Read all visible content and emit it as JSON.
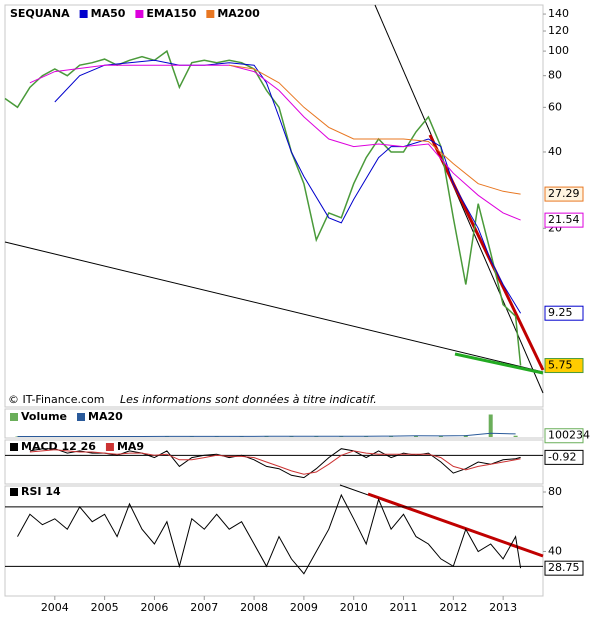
{
  "source": "© IT-Finance.com",
  "disclaimer": "Les informations sont données à titre indicatif.",
  "chart_data": [
    {
      "type": "line",
      "log_scale": true,
      "ylim": [
        4.4,
        152
      ],
      "yticks": [
        140,
        120,
        100,
        80,
        60,
        40,
        20
      ],
      "series": [
        {
          "name": "SEQUANA",
          "color": "#4a9a3a",
          "label_last": true,
          "label_fill": "#ffcc00",
          "label_color": "#000000",
          "x": [
            2003,
            2003.25,
            2003.5,
            2003.75,
            2004,
            2004.25,
            2004.5,
            2004.75,
            2005,
            2005.25,
            2005.5,
            2005.75,
            2006,
            2006.25,
            2006.5,
            2006.75,
            2007,
            2007.25,
            2007.5,
            2007.75,
            2008,
            2008.25,
            2008.5,
            2008.75,
            2009,
            2009.25,
            2009.5,
            2009.75,
            2010,
            2010.25,
            2010.5,
            2010.75,
            2011,
            2011.25,
            2011.5,
            2011.75,
            2012,
            2012.25,
            2012.5,
            2012.75,
            2013,
            2013.25,
            2013.35
          ],
          "values": [
            65,
            60,
            72,
            80,
            85,
            80,
            88,
            90,
            93,
            88,
            92,
            95,
            92,
            100,
            72,
            90,
            92,
            90,
            92,
            90,
            85,
            70,
            60,
            40,
            30,
            18,
            23,
            22,
            30,
            38,
            45,
            40,
            40,
            48,
            55,
            42,
            22,
            12,
            25,
            16,
            10,
            9,
            5.75
          ]
        },
        {
          "name": "MA50",
          "color": "#0000cc",
          "label_last": true,
          "label_fill": "#ffffff",
          "label_color": "#0000cc",
          "x": [
            2004,
            2004.5,
            2005,
            2005.5,
            2006,
            2006.5,
            2007,
            2007.5,
            2008,
            2008.25,
            2008.5,
            2008.75,
            2009,
            2009.5,
            2009.75,
            2010,
            2010.5,
            2010.75,
            2011,
            2011.5,
            2011.75,
            2012,
            2012.5,
            2012.75,
            2013,
            2013.35
          ],
          "values": [
            63,
            80,
            88,
            90,
            92,
            88,
            88,
            90,
            88,
            75,
            55,
            40,
            32,
            22,
            21,
            26,
            38,
            42,
            42,
            45,
            42,
            30,
            20,
            15,
            12,
            9.25
          ]
        },
        {
          "name": "EMA150",
          "color": "#dd00dd",
          "label_last": true,
          "label_fill": "#ffffff",
          "label_color": "#dd00dd",
          "x": [
            2003.5,
            2004,
            2005,
            2006,
            2007,
            2007.5,
            2008,
            2008.5,
            2009,
            2009.5,
            2010,
            2010.5,
            2011,
            2011.5,
            2012,
            2012.5,
            2013,
            2013.35
          ],
          "values": [
            75,
            83,
            88,
            88,
            88,
            88,
            83,
            70,
            55,
            45,
            42,
            43,
            42,
            43,
            33,
            27,
            23,
            21.54
          ]
        },
        {
          "name": "MA200",
          "color": "#e87722",
          "label_last": true,
          "label_fill": "#fff4e0",
          "label_color": "#e87722",
          "x": [
            2007.5,
            2008,
            2008.5,
            2009,
            2009.5,
            2010,
            2010.5,
            2011,
            2011.5,
            2012,
            2012.5,
            2013,
            2013.35
          ],
          "values": [
            88,
            85,
            75,
            60,
            50,
            45,
            45,
            45,
            44,
            36,
            30,
            28,
            27.29
          ]
        }
      ]
    },
    {
      "type": "bar",
      "ylim": [
        0,
        2000000
      ],
      "series": [
        {
          "name": "Volume",
          "color": "#6aae5a",
          "label_last": true,
          "label_fill": "#ffffff",
          "label_color": "#cc0000",
          "x": [
            2003.25,
            2003.75,
            2004.25,
            2004.75,
            2005.25,
            2005.75,
            2006.25,
            2006.75,
            2007.25,
            2007.75,
            2008.25,
            2008.75,
            2009.25,
            2009.75,
            2010.25,
            2010.75,
            2011.25,
            2011.75,
            2012.25,
            2012.75,
            2013.25
          ],
          "values": [
            40000,
            30000,
            50000,
            35000,
            40000,
            30000,
            60000,
            45000,
            50000,
            40000,
            70000,
            60000,
            80000,
            50000,
            60000,
            90000,
            120000,
            80000,
            150000,
            1800000,
            100234
          ]
        },
        {
          "name": "MA20",
          "color": "#2a5a9a",
          "draw": "line",
          "x": [
            2003.25,
            2003.75,
            2004.25,
            2004.75,
            2005.25,
            2005.75,
            2006.25,
            2006.75,
            2007.25,
            2007.75,
            2008.25,
            2008.75,
            2009.25,
            2009.75,
            2010.25,
            2010.75,
            2011.25,
            2011.75,
            2012.25,
            2012.75,
            2013.25
          ],
          "values": [
            40000,
            38000,
            40000,
            40000,
            40000,
            38000,
            45000,
            45000,
            47000,
            45000,
            55000,
            57000,
            65000,
            60000,
            62000,
            75000,
            95000,
            90000,
            110000,
            300000,
            250000
          ]
        }
      ]
    },
    {
      "type": "line",
      "ylim": [
        -12,
        6
      ],
      "hlines": [
        0
      ],
      "series": [
        {
          "name": "MACD 12 26",
          "color": "#000000",
          "label_last": true,
          "label_fill": "#ffffff",
          "label_color": "#000000",
          "x": [
            2003.5,
            2003.75,
            2004,
            2004.25,
            2004.5,
            2004.75,
            2005,
            2005.25,
            2005.5,
            2005.75,
            2006,
            2006.25,
            2006.5,
            2006.75,
            2007,
            2007.25,
            2007.5,
            2007.75,
            2008,
            2008.25,
            2008.5,
            2008.75,
            2009,
            2009.25,
            2009.5,
            2009.75,
            2010,
            2010.25,
            2010.5,
            2010.75,
            2011,
            2011.25,
            2011.5,
            2011.75,
            2012,
            2012.25,
            2012.5,
            2012.75,
            2013,
            2013.25,
            2013.35
          ],
          "values": [
            2,
            3,
            3,
            1,
            2,
            1,
            1,
            0,
            2,
            1,
            -1,
            2,
            -5,
            -1,
            0,
            0.5,
            -1,
            0,
            -2,
            -5,
            -6,
            -9,
            -10,
            -6,
            -1,
            3,
            2,
            -1,
            2,
            -1,
            1,
            0,
            1,
            -3,
            -8,
            -6,
            -3,
            -4,
            -2,
            -1.5,
            -0.92
          ]
        },
        {
          "name": "MA9",
          "color": "#cc3333",
          "x": [
            2003.5,
            2003.75,
            2004,
            2004.25,
            2004.5,
            2004.75,
            2005,
            2005.25,
            2005.5,
            2005.75,
            2006,
            2006.25,
            2006.5,
            2006.75,
            2007,
            2007.25,
            2007.5,
            2007.75,
            2008,
            2008.25,
            2008.5,
            2008.75,
            2009,
            2009.25,
            2009.5,
            2009.75,
            2010,
            2010.25,
            2010.5,
            2010.75,
            2011,
            2011.25,
            2011.5,
            2011.75,
            2012,
            2012.25,
            2012.5,
            2012.75,
            2013,
            2013.25,
            2013.35
          ],
          "values": [
            1.5,
            2,
            2.5,
            2,
            1.5,
            1.5,
            1,
            0.5,
            1,
            1,
            0,
            0.5,
            -2,
            -2,
            -1,
            0,
            -0.5,
            -0.5,
            -1,
            -3,
            -5,
            -7,
            -8.5,
            -7.5,
            -4,
            0,
            2,
            1,
            0.5,
            0.5,
            0.5,
            0.5,
            0.5,
            -1,
            -5,
            -6.5,
            -5,
            -4,
            -3,
            -2,
            -1.5
          ]
        }
      ]
    },
    {
      "type": "line",
      "ylim": [
        10.7,
        82.7
      ],
      "yticks": [
        80,
        40
      ],
      "hlines": [
        70,
        30
      ],
      "xlim": [
        2003,
        2013.8
      ],
      "xticks": [
        2004,
        2005,
        2006,
        2007,
        2008,
        2009,
        2010,
        2011,
        2012,
        2013
      ],
      "series": [
        {
          "name": "RSI 14",
          "color": "#000000",
          "label_last": true,
          "label_fill": "#ffffff",
          "label_color": "#000000",
          "x": [
            2003.25,
            2003.5,
            2003.75,
            2004,
            2004.25,
            2004.5,
            2004.75,
            2005,
            2005.25,
            2005.5,
            2005.75,
            2006,
            2006.25,
            2006.5,
            2006.75,
            2007,
            2007.25,
            2007.5,
            2007.75,
            2008,
            2008.25,
            2008.5,
            2008.75,
            2009,
            2009.25,
            2009.5,
            2009.75,
            2010,
            2010.25,
            2010.5,
            2010.75,
            2011,
            2011.25,
            2011.5,
            2011.75,
            2012,
            2012.25,
            2012.5,
            2012.75,
            2013,
            2013.25,
            2013.35
          ],
          "values": [
            50,
            65,
            58,
            62,
            55,
            70,
            60,
            65,
            50,
            72,
            55,
            45,
            60,
            30,
            62,
            55,
            65,
            55,
            60,
            45,
            30,
            50,
            35,
            25,
            40,
            55,
            78,
            62,
            45,
            75,
            55,
            65,
            50,
            45,
            35,
            30,
            55,
            40,
            45,
            35,
            50,
            28.75
          ]
        }
      ]
    }
  ]
}
